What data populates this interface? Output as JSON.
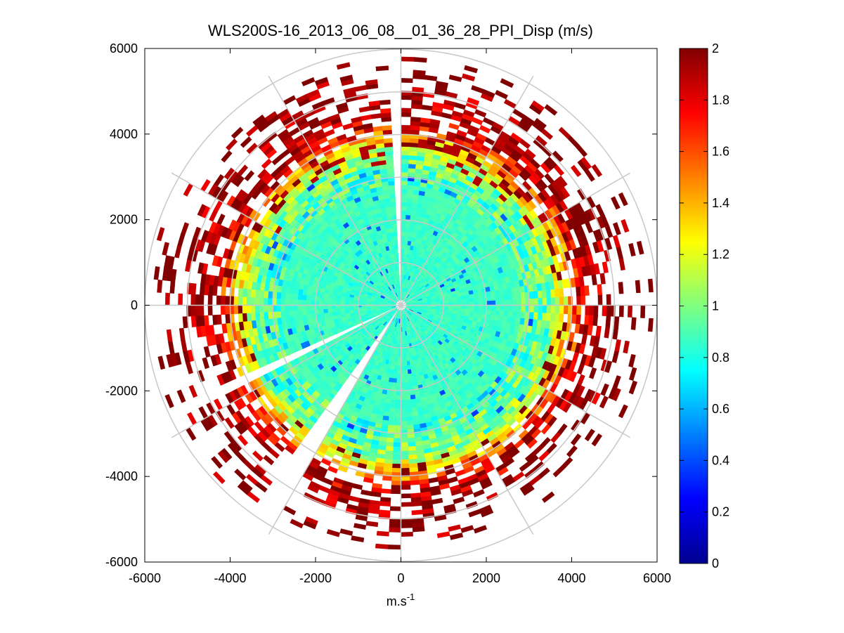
{
  "chart_data": {
    "type": "heatmap",
    "subtype": "polar-ppi",
    "title": "WLS200S-16_2013_06_08__01_36_28_PPI_Disp (m/s)",
    "xlabel_base": "m.s",
    "xlabel_exponent": "-1",
    "ylabel": "",
    "xlim": [
      -6000,
      6000
    ],
    "ylim": [
      -6000,
      6000
    ],
    "x_ticks": [
      -6000,
      -4000,
      -2000,
      0,
      2000,
      4000,
      6000
    ],
    "y_ticks": [
      -6000,
      -4000,
      -2000,
      0,
      2000,
      4000,
      6000
    ],
    "x_tick_labels": [
      "-6000",
      "-4000",
      "-2000",
      "0",
      "2000",
      "4000",
      "6000"
    ],
    "y_tick_labels": [
      "-6000",
      "-4000",
      "-2000",
      "0",
      "2000",
      "4000",
      "6000"
    ],
    "grid": {
      "rings": [
        1000,
        2000,
        3000,
        4000,
        5000,
        6000
      ],
      "spokes_deg": [
        0,
        30,
        60,
        90,
        120,
        150,
        180,
        210,
        240,
        270,
        300,
        330
      ],
      "color": "#c8c8c8"
    },
    "colormap": "jet",
    "colorbar": {
      "clim": [
        0,
        2
      ],
      "ticks": [
        0,
        0.2,
        0.4,
        0.6,
        0.8,
        1,
        1.2,
        1.4,
        1.6,
        1.8,
        2
      ],
      "tick_labels": [
        "0",
        "0.2",
        "0.4",
        "0.6",
        "0.8",
        "1",
        "1.2",
        "1.4",
        "1.6",
        "1.8",
        "2"
      ]
    },
    "radial_profile": [
      {
        "r": 0,
        "value": 0.85
      },
      {
        "r": 2800,
        "value": 0.88
      },
      {
        "r": 3500,
        "value": 1.0
      },
      {
        "r": 3900,
        "value": 1.35
      },
      {
        "r": 4300,
        "value": 1.85
      },
      {
        "r": 5200,
        "value": 2.0
      }
    ],
    "coverage": {
      "dense_radius": 3800,
      "sparse_max_radius": 6000
    },
    "missing_sectors_deg": [
      {
        "start": 90.0,
        "end": 91.5
      },
      {
        "start": 203.0,
        "end": 208.0
      },
      {
        "start": 235.0,
        "end": 236.0
      },
      {
        "start": 238.0,
        "end": 239.0
      }
    ]
  }
}
